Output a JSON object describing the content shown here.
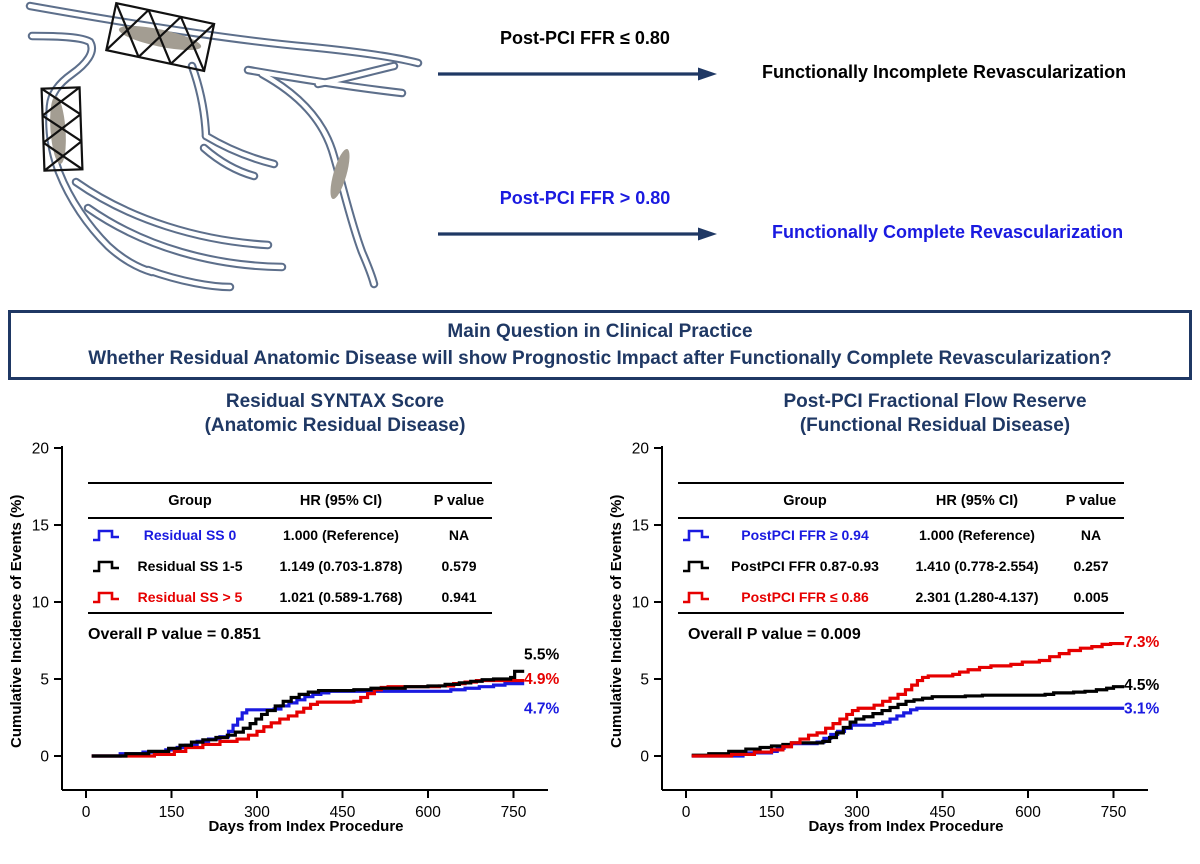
{
  "colors": {
    "navy": "#1f3864",
    "blue": "#1a1ae0",
    "red": "#e60000",
    "black": "#000000",
    "vessel": "#5d6f8b",
    "plaque": "#a39d92"
  },
  "flow": {
    "incomplete": {
      "condition": "Post-PCI FFR ≤ 0.80",
      "outcome": "Functionally Incomplete Revascularization"
    },
    "complete": {
      "condition": "Post-PCI FFR > 0.80",
      "outcome": "Functionally Complete Revascularization"
    }
  },
  "question_box": {
    "line1": "Main Question in Clinical Practice",
    "line2": "Whether Residual Anatomic Disease will show Prognostic Impact after Functionally Complete Revascularization?"
  },
  "chart_data": [
    {
      "type": "line",
      "title_line1": "Residual SYNTAX Score",
      "title_line2": "(Anatomic Residual Disease)",
      "xlabel": "Days from Index Procedure",
      "ylabel": "Cumulative Incidence of Events (%)",
      "xlim": [
        0,
        800
      ],
      "ylim": [
        0,
        20
      ],
      "xticks": [
        0,
        150,
        300,
        450,
        600,
        750
      ],
      "yticks": [
        0,
        5,
        10,
        15,
        20
      ],
      "grid": false,
      "overall_p": "Overall P value = 0.851",
      "table": {
        "headers": [
          "Group",
          "HR (95% CI)",
          "P value"
        ],
        "rows": [
          {
            "group": "Residual SS 0",
            "hr": "1.000 (Reference)",
            "p": "NA",
            "color": "blue"
          },
          {
            "group": "Residual SS 1-5",
            "hr": "1.149 (0.703-1.878)",
            "p": "0.579",
            "color": "black"
          },
          {
            "group": "Residual SS > 5",
            "hr": "1.021 (0.589-1.768)",
            "p": "0.941",
            "color": "red"
          }
        ]
      },
      "series": [
        {
          "name": "Residual SS 0",
          "color": "#1a1ae0",
          "end_label": "4.7%",
          "label_value": 3.1,
          "points": [
            [
              10,
              0
            ],
            [
              60,
              0.15
            ],
            [
              100,
              0.25
            ],
            [
              140,
              0.4
            ],
            [
              160,
              0.55
            ],
            [
              175,
              0.7
            ],
            [
              195,
              0.95
            ],
            [
              215,
              1.1
            ],
            [
              235,
              1.25
            ],
            [
              250,
              1.6
            ],
            [
              258,
              2.0
            ],
            [
              266,
              2.4
            ],
            [
              274,
              2.8
            ],
            [
              282,
              3.0
            ],
            [
              330,
              3.05
            ],
            [
              342,
              3.25
            ],
            [
              356,
              3.45
            ],
            [
              370,
              3.65
            ],
            [
              384,
              3.85
            ],
            [
              398,
              4.0
            ],
            [
              412,
              4.1
            ],
            [
              426,
              4.2
            ],
            [
              600,
              4.2
            ],
            [
              640,
              4.3
            ],
            [
              665,
              4.4
            ],
            [
              690,
              4.5
            ],
            [
              715,
              4.6
            ],
            [
              735,
              4.7
            ],
            [
              760,
              4.7
            ]
          ]
        },
        {
          "name": "Residual SS > 5",
          "color": "#e60000",
          "end_label": "4.9%",
          "label_value": 5.0,
          "points": [
            [
              10,
              0
            ],
            [
              120,
              0.1
            ],
            [
              155,
              0.3
            ],
            [
              175,
              0.55
            ],
            [
              205,
              0.75
            ],
            [
              235,
              0.95
            ],
            [
              265,
              1.1
            ],
            [
              285,
              1.35
            ],
            [
              300,
              1.6
            ],
            [
              312,
              1.9
            ],
            [
              325,
              2.15
            ],
            [
              340,
              2.4
            ],
            [
              355,
              2.6
            ],
            [
              370,
              2.85
            ],
            [
              382,
              3.1
            ],
            [
              394,
              3.35
            ],
            [
              406,
              3.5
            ],
            [
              470,
              3.55
            ],
            [
              482,
              3.8
            ],
            [
              494,
              4.05
            ],
            [
              506,
              4.3
            ],
            [
              518,
              4.45
            ],
            [
              530,
              4.5
            ],
            [
              620,
              4.55
            ],
            [
              645,
              4.7
            ],
            [
              665,
              4.8
            ],
            [
              685,
              4.9
            ],
            [
              760,
              4.9
            ]
          ]
        },
        {
          "name": "Residual SS 1-5",
          "color": "#000000",
          "end_label": "5.5%",
          "label_value": 6.6,
          "points": [
            [
              10,
              0
            ],
            [
              70,
              0.15
            ],
            [
              110,
              0.3
            ],
            [
              145,
              0.5
            ],
            [
              165,
              0.7
            ],
            [
              185,
              0.9
            ],
            [
              205,
              1.05
            ],
            [
              228,
              1.2
            ],
            [
              248,
              1.35
            ],
            [
              262,
              1.55
            ],
            [
              276,
              1.8
            ],
            [
              288,
              2.1
            ],
            [
              298,
              2.4
            ],
            [
              308,
              2.7
            ],
            [
              318,
              2.95
            ],
            [
              332,
              3.25
            ],
            [
              346,
              3.55
            ],
            [
              360,
              3.8
            ],
            [
              374,
              4.0
            ],
            [
              390,
              4.15
            ],
            [
              408,
              4.25
            ],
            [
              470,
              4.3
            ],
            [
              500,
              4.4
            ],
            [
              560,
              4.5
            ],
            [
              600,
              4.55
            ],
            [
              630,
              4.65
            ],
            [
              655,
              4.75
            ],
            [
              675,
              4.85
            ],
            [
              695,
              4.95
            ],
            [
              715,
              5.0
            ],
            [
              745,
              5.1
            ],
            [
              752,
              5.5
            ],
            [
              760,
              5.5
            ]
          ]
        }
      ]
    },
    {
      "type": "line",
      "title_line1": "Post-PCI Fractional Flow Reserve",
      "title_line2": "(Functional Residual Disease)",
      "xlabel": "Days from Index Procedure",
      "ylabel": "Cumulative Incidence of Events (%)",
      "xlim": [
        0,
        800
      ],
      "ylim": [
        0,
        20
      ],
      "xticks": [
        0,
        150,
        300,
        450,
        600,
        750
      ],
      "yticks": [
        0,
        5,
        10,
        15,
        20
      ],
      "grid": false,
      "overall_p": "Overall P value = 0.009",
      "table": {
        "headers": [
          "Group",
          "HR (95% CI)",
          "P value"
        ],
        "rows": [
          {
            "group": "PostPCI FFR ≥ 0.94",
            "hr": "1.000 (Reference)",
            "p": "NA",
            "color": "blue"
          },
          {
            "group": "PostPCI FFR 0.87-0.93",
            "hr": "1.410 (0.778-2.554)",
            "p": "0.257",
            "color": "black"
          },
          {
            "group": "PostPCI FFR ≤ 0.86",
            "hr": "2.301 (1.280-4.137)",
            "p": "0.005",
            "color": "red"
          }
        ]
      },
      "series": [
        {
          "name": "PostPCI FFR ≥ 0.94",
          "color": "#1a1ae0",
          "end_label": "3.1%",
          "label_value": 3.1,
          "points": [
            [
              10,
              0
            ],
            [
              100,
              0.2
            ],
            [
              150,
              0.3
            ],
            [
              160,
              0.5
            ],
            [
              172,
              0.7
            ],
            [
              185,
              0.8
            ],
            [
              230,
              0.9
            ],
            [
              242,
              1.15
            ],
            [
              254,
              1.4
            ],
            [
              266,
              1.6
            ],
            [
              278,
              1.8
            ],
            [
              290,
              2.0
            ],
            [
              330,
              2.1
            ],
            [
              345,
              2.2
            ],
            [
              358,
              2.4
            ],
            [
              370,
              2.6
            ],
            [
              382,
              2.8
            ],
            [
              394,
              3.0
            ],
            [
              405,
              3.1
            ],
            [
              760,
              3.1
            ]
          ]
        },
        {
          "name": "PostPCI FFR 0.87-0.93",
          "color": "#000000",
          "end_label": "4.5%",
          "label_value": 4.6,
          "points": [
            [
              10,
              0.05
            ],
            [
              40,
              0.15
            ],
            [
              75,
              0.3
            ],
            [
              105,
              0.45
            ],
            [
              130,
              0.55
            ],
            [
              150,
              0.65
            ],
            [
              170,
              0.75
            ],
            [
              185,
              0.85
            ],
            [
              240,
              0.95
            ],
            [
              252,
              1.2
            ],
            [
              264,
              1.5
            ],
            [
              276,
              1.85
            ],
            [
              288,
              2.2
            ],
            [
              298,
              2.4
            ],
            [
              312,
              2.55
            ],
            [
              328,
              2.75
            ],
            [
              344,
              2.95
            ],
            [
              358,
              3.15
            ],
            [
              372,
              3.35
            ],
            [
              386,
              3.55
            ],
            [
              400,
              3.65
            ],
            [
              415,
              3.75
            ],
            [
              432,
              3.85
            ],
            [
              490,
              3.9
            ],
            [
              520,
              3.95
            ],
            [
              630,
              4.0
            ],
            [
              645,
              4.1
            ],
            [
              680,
              4.15
            ],
            [
              700,
              4.2
            ],
            [
              720,
              4.3
            ],
            [
              738,
              4.4
            ],
            [
              750,
              4.5
            ],
            [
              760,
              4.5
            ]
          ]
        },
        {
          "name": "PostPCI FFR ≤ 0.86",
          "color": "#e60000",
          "end_label": "7.3%",
          "label_value": 7.4,
          "points": [
            [
              10,
              0
            ],
            [
              80,
              0.1
            ],
            [
              120,
              0.25
            ],
            [
              150,
              0.4
            ],
            [
              170,
              0.6
            ],
            [
              185,
              0.85
            ],
            [
              200,
              1.1
            ],
            [
              215,
              1.35
            ],
            [
              230,
              1.5
            ],
            [
              245,
              1.8
            ],
            [
              258,
              2.1
            ],
            [
              270,
              2.4
            ],
            [
              282,
              2.7
            ],
            [
              292,
              2.95
            ],
            [
              302,
              3.1
            ],
            [
              330,
              3.3
            ],
            [
              345,
              3.55
            ],
            [
              358,
              3.75
            ],
            [
              372,
              4.0
            ],
            [
              385,
              4.3
            ],
            [
              396,
              4.6
            ],
            [
              406,
              4.9
            ],
            [
              415,
              5.1
            ],
            [
              425,
              5.2
            ],
            [
              468,
              5.3
            ],
            [
              480,
              5.45
            ],
            [
              495,
              5.6
            ],
            [
              515,
              5.75
            ],
            [
              535,
              5.85
            ],
            [
              570,
              5.95
            ],
            [
              590,
              6.1
            ],
            [
              620,
              6.2
            ],
            [
              638,
              6.45
            ],
            [
              655,
              6.65
            ],
            [
              672,
              6.85
            ],
            [
              692,
              7.0
            ],
            [
              712,
              7.1
            ],
            [
              730,
              7.25
            ],
            [
              745,
              7.3
            ],
            [
              760,
              7.3
            ]
          ]
        }
      ]
    }
  ]
}
